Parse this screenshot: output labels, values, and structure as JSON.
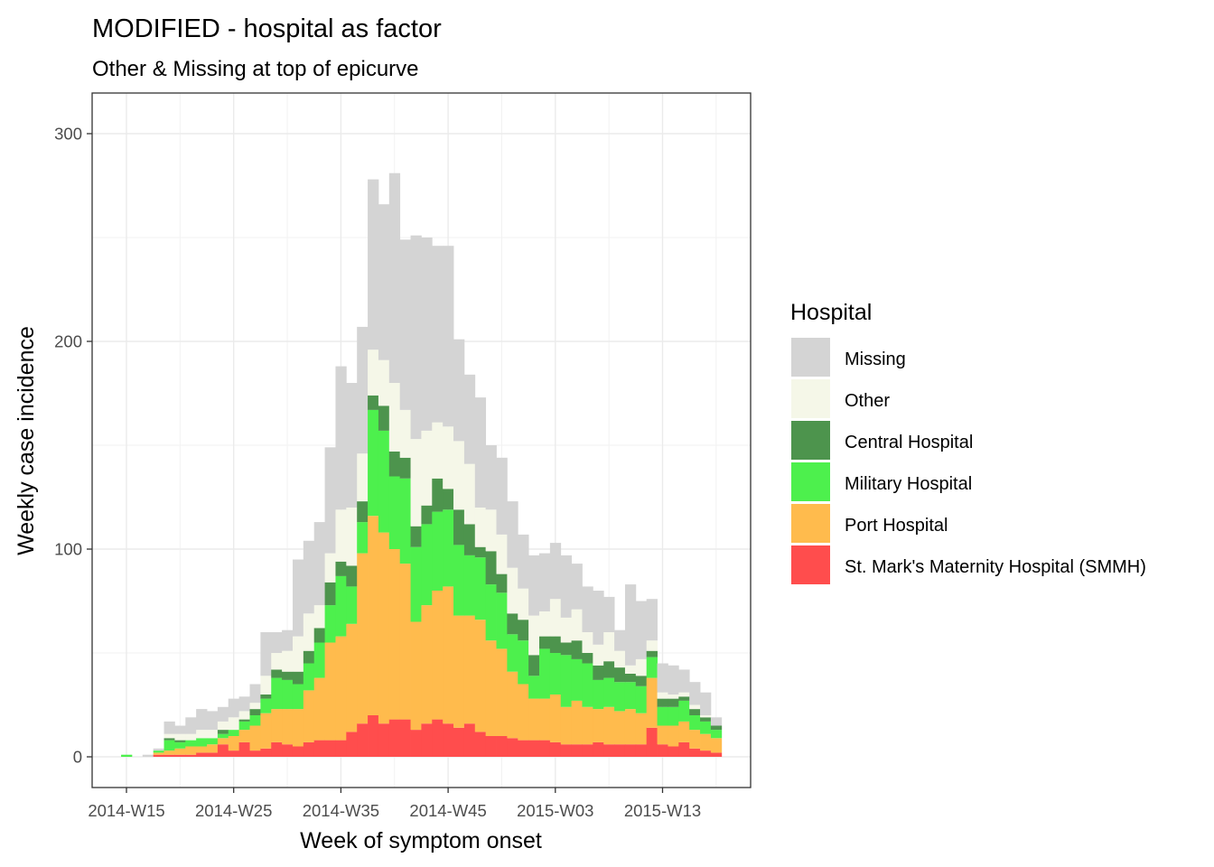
{
  "chart_data": {
    "type": "bar",
    "stacked": true,
    "title": "MODIFIED - hospital as factor",
    "subtitle": "Other & Missing at top of epicurve",
    "xlabel": "Week of symptom onset",
    "ylabel": "Weekly case incidence",
    "ylim": [
      -15,
      315
    ],
    "y_ticks": [
      0,
      100,
      200,
      300
    ],
    "x_tick_labels": [
      "2014-W15",
      "2014-W25",
      "2014-W35",
      "2014-W45",
      "2015-W03",
      "2015-W13"
    ],
    "x_tick_indices": [
      0,
      10,
      20,
      30,
      40,
      50
    ],
    "grid": true,
    "legend_position": "right",
    "legend_title": "Hospital",
    "weeks": [
      "2014-W15",
      "2014-W16",
      "2014-W17",
      "2014-W18",
      "2014-W19",
      "2014-W20",
      "2014-W21",
      "2014-W22",
      "2014-W23",
      "2014-W24",
      "2014-W25",
      "2014-W26",
      "2014-W27",
      "2014-W28",
      "2014-W29",
      "2014-W30",
      "2014-W31",
      "2014-W32",
      "2014-W33",
      "2014-W34",
      "2014-W35",
      "2014-W36",
      "2014-W37",
      "2014-W38",
      "2014-W39",
      "2014-W40",
      "2014-W41",
      "2014-W42",
      "2014-W43",
      "2014-W44",
      "2014-W45",
      "2014-W46",
      "2014-W47",
      "2014-W48",
      "2014-W49",
      "2014-W50",
      "2014-W51",
      "2014-W52",
      "2015-W01",
      "2015-W02",
      "2015-W03",
      "2015-W04",
      "2015-W05",
      "2015-W06",
      "2015-W07",
      "2015-W08",
      "2015-W09",
      "2015-W10",
      "2015-W11",
      "2015-W12",
      "2015-W13",
      "2015-W14",
      "2015-W15",
      "2015-W16",
      "2015-W17",
      "2015-W18"
    ],
    "series": [
      {
        "name": "St. Mark's Maternity Hospital (SMMH)",
        "color": "#FF4D4D",
        "values": [
          0,
          0,
          0,
          1,
          1,
          1,
          1,
          2,
          2,
          6,
          3,
          7,
          3,
          4,
          7,
          6,
          5,
          7,
          8,
          8,
          8,
          12,
          16,
          20,
          16,
          18,
          18,
          13,
          16,
          18,
          16,
          14,
          16,
          12,
          10,
          10,
          9,
          8,
          8,
          8,
          7,
          6,
          6,
          6,
          7,
          6,
          6,
          6,
          6,
          14,
          6,
          5,
          7,
          4,
          3,
          2
        ]
      },
      {
        "name": "Port Hospital",
        "color": "#FFBB4D",
        "values": [
          0,
          0,
          0,
          1,
          2,
          3,
          4,
          3,
          4,
          3,
          7,
          6,
          12,
          17,
          16,
          17,
          18,
          25,
          30,
          47,
          50,
          52,
          82,
          96,
          92,
          82,
          75,
          52,
          57,
          62,
          66,
          54,
          52,
          54,
          46,
          42,
          32,
          27,
          20,
          20,
          23,
          18,
          21,
          18,
          16,
          18,
          16,
          17,
          15,
          24,
          9,
          10,
          10,
          9,
          8,
          7
        ]
      },
      {
        "name": "Military Hospital",
        "color": "#4DF04D",
        "values": [
          1,
          0,
          0,
          1,
          5,
          3,
          3,
          4,
          3,
          2,
          3,
          4,
          5,
          7,
          15,
          14,
          12,
          13,
          17,
          18,
          29,
          18,
          15,
          51,
          49,
          35,
          41,
          36,
          39,
          38,
          37,
          34,
          29,
          30,
          27,
          27,
          18,
          21,
          11,
          24,
          20,
          25,
          20,
          21,
          14,
          14,
          14,
          13,
          13,
          10,
          9,
          9,
          10,
          7,
          6,
          4
        ]
      },
      {
        "name": "Central Hospital",
        "color": "#4D944D",
        "values": [
          0,
          0,
          0,
          0,
          1,
          1,
          0,
          0,
          0,
          2,
          0,
          1,
          3,
          2,
          4,
          4,
          6,
          6,
          7,
          11,
          7,
          10,
          10,
          7,
          12,
          12,
          10,
          10,
          9,
          16,
          10,
          17,
          15,
          5,
          16,
          9,
          10,
          10,
          10,
          6,
          8,
          6,
          9,
          5,
          7,
          8,
          7,
          4,
          5,
          3,
          4,
          4,
          2,
          3,
          2,
          2
        ]
      },
      {
        "name": "Other",
        "color": "#F5F7E8",
        "values": [
          0,
          0,
          0,
          0,
          2,
          3,
          3,
          4,
          4,
          4,
          6,
          4,
          3,
          9,
          8,
          10,
          17,
          18,
          11,
          14,
          25,
          28,
          23,
          22,
          22,
          33,
          23,
          42,
          36,
          27,
          30,
          33,
          29,
          19,
          20,
          19,
          22,
          15,
          19,
          12,
          18,
          12,
          15,
          10,
          10,
          14,
          8,
          4,
          8,
          5,
          3,
          2,
          2,
          2,
          1,
          0
        ]
      },
      {
        "name": "Missing",
        "color": "#D4D4D4",
        "values": [
          0,
          0,
          1,
          1,
          6,
          4,
          8,
          10,
          9,
          7,
          9,
          7,
          9,
          21,
          10,
          10,
          37,
          35,
          40,
          51,
          69,
          60,
          61,
          82,
          75,
          101,
          82,
          98,
          93,
          85,
          87,
          49,
          43,
          53,
          31,
          37,
          32,
          26,
          29,
          28,
          27,
          30,
          22,
          22,
          26,
          17,
          10,
          39,
          28,
          20,
          14,
          14,
          11,
          11,
          11,
          4
        ]
      }
    ]
  }
}
